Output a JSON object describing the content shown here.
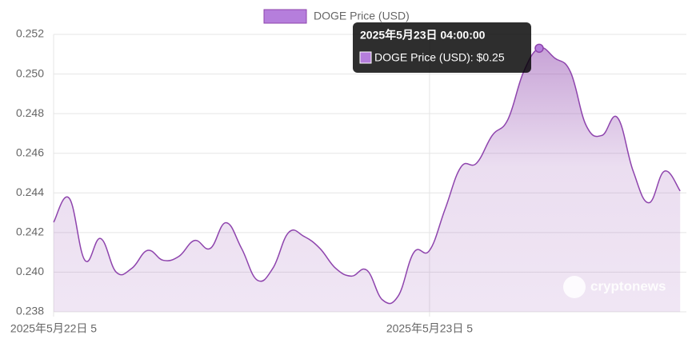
{
  "chart_data": {
    "type": "line",
    "categories": [
      "2025年5月22日 5",
      null,
      null,
      null,
      null,
      null,
      null,
      null,
      null,
      null,
      null,
      null,
      null,
      null,
      null,
      null,
      null,
      null,
      null,
      null,
      null,
      null,
      null,
      null,
      "2025年5月23日 5",
      null,
      null,
      null,
      null,
      null,
      null,
      null,
      null,
      null,
      null,
      null,
      null,
      null,
      null,
      null,
      null
    ],
    "series": [
      {
        "name": "DOGE Price (USD)",
        "color": "#8e44ad",
        "values": [
          0.24252,
          0.24373,
          0.2406,
          0.2417,
          0.24,
          0.2402,
          0.2411,
          0.2406,
          0.2408,
          0.2416,
          0.2412,
          0.2425,
          0.2412,
          0.2396,
          0.2402,
          0.242,
          0.2418,
          0.2412,
          0.2402,
          0.2398,
          0.2401,
          0.2386,
          0.2388,
          0.241,
          0.2411,
          0.2432,
          0.2453,
          0.2455,
          0.2469,
          0.2477,
          0.2501,
          0.2513,
          0.2508,
          0.2501,
          0.2474,
          0.2469,
          0.2478,
          0.2451,
          0.2435,
          0.2451,
          0.2441
        ]
      }
    ],
    "ylim": [
      0.238,
      0.252
    ],
    "yticks": [
      {
        "value": 0.238,
        "label": "0.238"
      },
      {
        "value": 0.24,
        "label": "0.240"
      },
      {
        "value": 0.242,
        "label": "0.242"
      },
      {
        "value": 0.244,
        "label": "0.244"
      },
      {
        "value": 0.246,
        "label": "0.246"
      },
      {
        "value": 0.248,
        "label": "0.248"
      },
      {
        "value": 0.25,
        "label": "0.250"
      },
      {
        "value": 0.252,
        "label": "0.252"
      }
    ],
    "grid": true,
    "legend": "top",
    "tooltip": {
      "title": "2025年5月23日 04:00:00",
      "label": "DOGE Price (USD): $0.25"
    },
    "watermark": "cryptonews"
  }
}
